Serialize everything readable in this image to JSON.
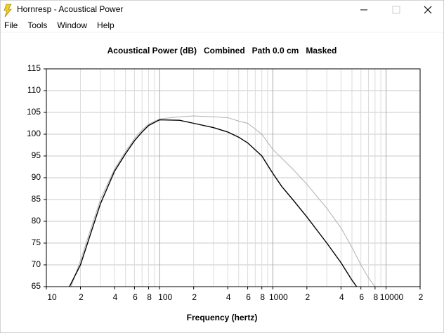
{
  "window": {
    "title": "Hornresp - Acoustical Power",
    "menu": [
      "File",
      "Tools",
      "Window",
      "Help"
    ]
  },
  "chart_data": {
    "type": "line",
    "title": "Acoustical Power (dB)   Combined   Path 0.0 cm   Masked",
    "x_label": "Frequency (hertz)",
    "xscale": "log",
    "xlim": [
      10,
      20000
    ],
    "xticks": [
      10,
      {
        "value": 20,
        "label": "2"
      },
      {
        "value": 40,
        "label": "4"
      },
      {
        "value": 60,
        "label": "6"
      },
      {
        "value": 80,
        "label": "8"
      },
      100,
      {
        "value": 200,
        "label": "2"
      },
      {
        "value": 400,
        "label": "4"
      },
      {
        "value": 600,
        "label": "6"
      },
      {
        "value": 800,
        "label": "8"
      },
      1000,
      {
        "value": 2000,
        "label": "2"
      },
      {
        "value": 4000,
        "label": "4"
      },
      {
        "value": 6000,
        "label": "6"
      },
      {
        "value": 8000,
        "label": "8"
      },
      10000,
      {
        "value": 20000,
        "label": "2"
      }
    ],
    "xminor": [
      30,
      50,
      70,
      90,
      300,
      500,
      700,
      900,
      3000,
      5000,
      7000,
      9000
    ],
    "ylim": [
      65,
      115
    ],
    "yticks": [
      65,
      70,
      75,
      80,
      85,
      90,
      95,
      100,
      105,
      110,
      115
    ],
    "grid": true,
    "series": [
      {
        "color": "#000000",
        "x": [
          16,
          20,
          30,
          40,
          50,
          60,
          70,
          80,
          100,
          150,
          200,
          300,
          400,
          500,
          600,
          800,
          1000,
          1200,
          1500,
          2000,
          3000,
          4000,
          5000,
          5500
        ],
        "values": [
          65,
          70,
          84,
          91.5,
          95.5,
          98.5,
          100.5,
          102,
          103.3,
          103.2,
          102.5,
          101.5,
          100.5,
          99.3,
          98,
          95,
          91,
          88,
          85,
          81,
          75,
          70.5,
          66.5,
          65
        ]
      },
      {
        "color": "#b0b0b0",
        "x": [
          16.5,
          20,
          30,
          40,
          50,
          60,
          70,
          80,
          100,
          150,
          200,
          300,
          400,
          500,
          600,
          800,
          1000,
          1500,
          2000,
          3000,
          4000,
          5000,
          6000,
          7000,
          8000
        ],
        "values": [
          65,
          71,
          85,
          92,
          96,
          99,
          101,
          102.3,
          103.5,
          104,
          104.2,
          104,
          103.8,
          103,
          102.5,
          100,
          96.5,
          92,
          88.5,
          83,
          78.5,
          74,
          70,
          67,
          65
        ]
      }
    ]
  }
}
